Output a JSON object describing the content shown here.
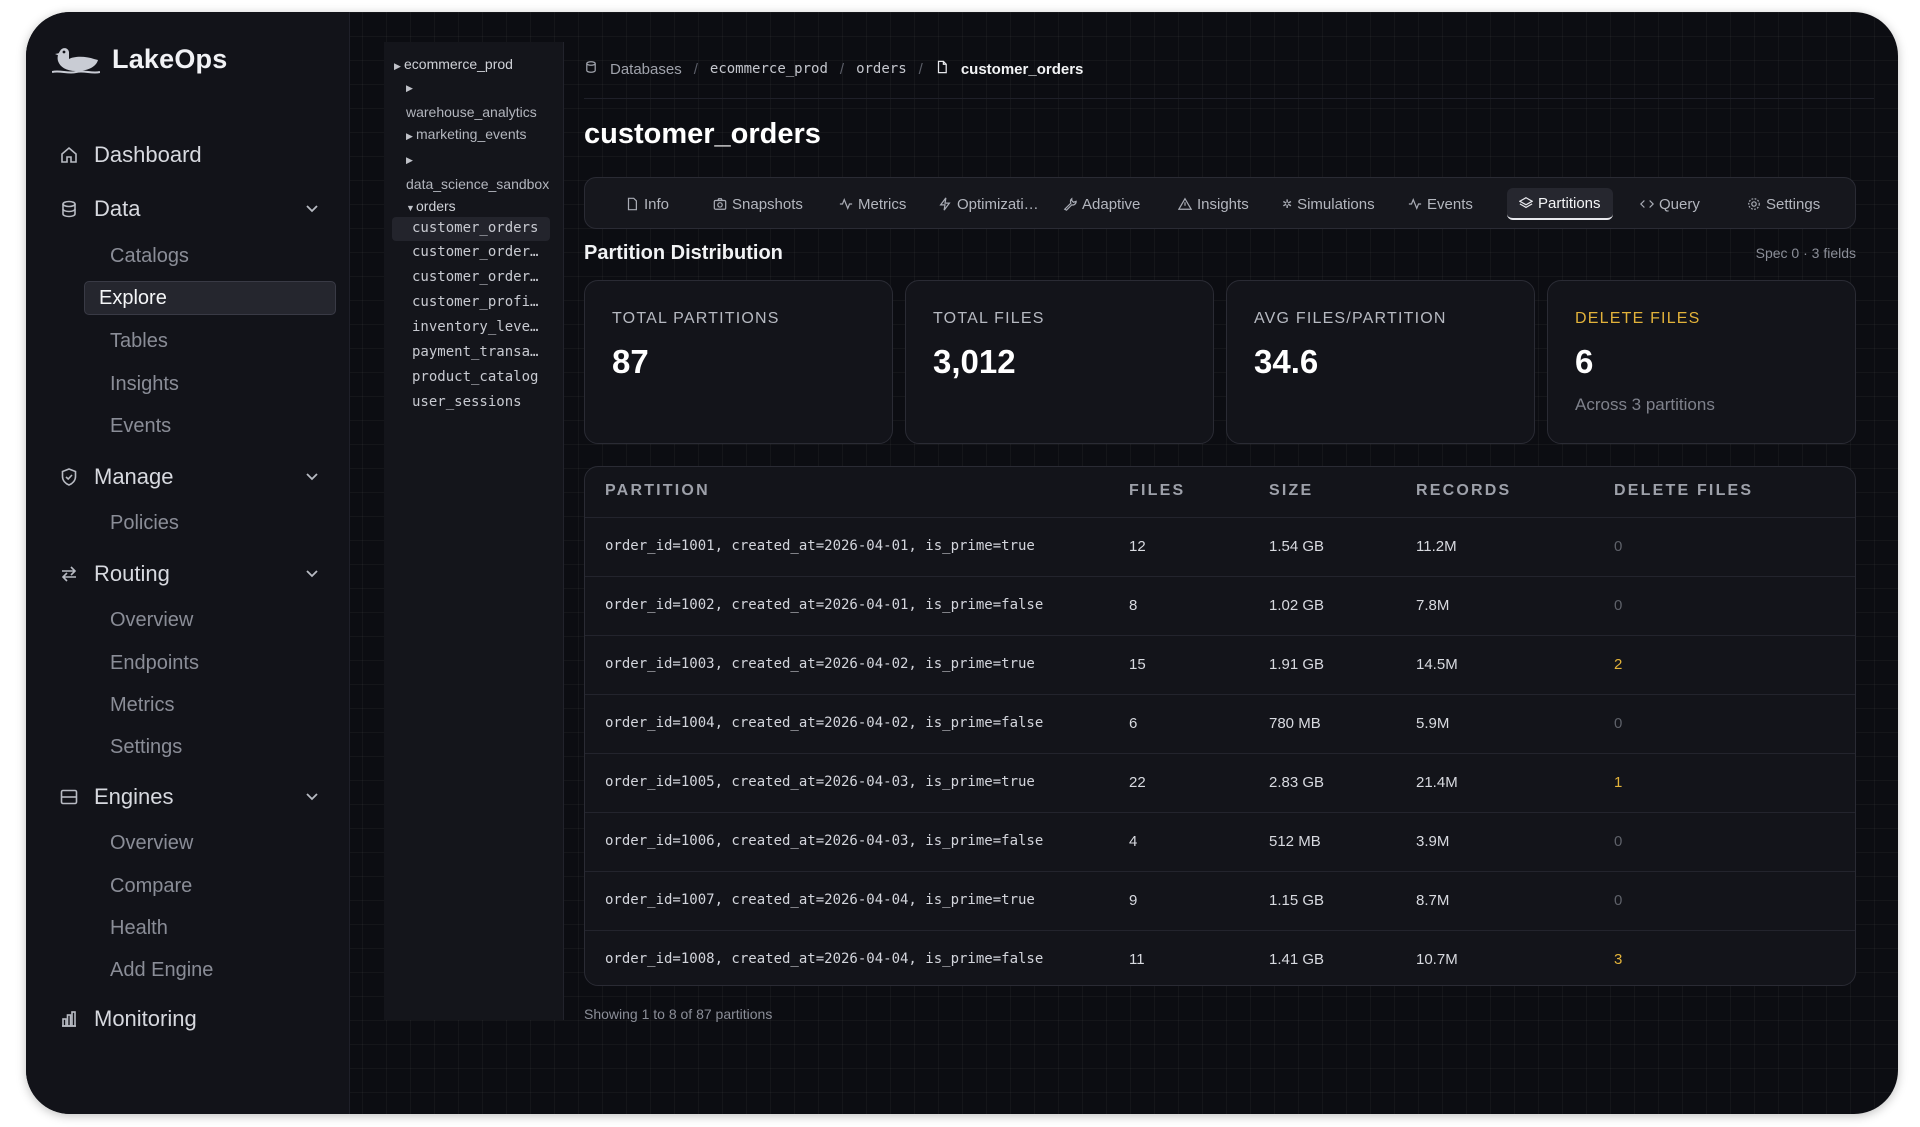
{
  "app": {
    "name": "LakeOps"
  },
  "sidebar": {
    "dashboard": "Dashboard",
    "data": {
      "label": "Data",
      "items": [
        "Catalogs",
        "Explore",
        "Tables",
        "Insights",
        "Events"
      ]
    },
    "manage": {
      "label": "Manage",
      "items": [
        "Policies"
      ]
    },
    "routing": {
      "label": "Routing",
      "items": [
        "Overview",
        "Endpoints",
        "Metrics",
        "Settings"
      ]
    },
    "engines": {
      "label": "Engines",
      "items": [
        "Overview",
        "Compare",
        "Health",
        "Add Engine"
      ]
    },
    "monitoring": "Monitoring"
  },
  "tree": {
    "root": "ecommerce_prod",
    "folders": [
      "warehouse_analytics",
      "marketing_events",
      "data_science_sandbox"
    ],
    "open_folder": "orders",
    "tables": [
      "customer_orders",
      "customer_order…",
      "customer_order…",
      "customer_profi…",
      "inventory_leve…",
      "payment_transa…",
      "product_catalog",
      "user_sessions"
    ]
  },
  "breadcrumb": {
    "root": "Databases",
    "db": "ecommerce_prod",
    "ns": "orders",
    "table": "customer_orders"
  },
  "page": {
    "title": "customer_orders"
  },
  "tabs": [
    "Info",
    "Snapshots",
    "Metrics",
    "Optimizati…",
    "Adaptive",
    "Insights",
    "Simulations",
    "Events",
    "Partitions",
    "Query",
    "Settings"
  ],
  "section": {
    "title": "Partition Distribution",
    "spec": "Spec 0 · 3 fields"
  },
  "cards": [
    {
      "label": "TOTAL PARTITIONS",
      "value": "87",
      "sub": ""
    },
    {
      "label": "TOTAL FILES",
      "value": "3,012",
      "sub": ""
    },
    {
      "label": "AVG FILES/PARTITION",
      "value": "34.6",
      "sub": ""
    },
    {
      "label": "DELETE FILES",
      "value": "6",
      "sub": "Across 3 partitions"
    }
  ],
  "table": {
    "headers": [
      "PARTITION",
      "FILES",
      "SIZE",
      "RECORDS",
      "DELETE FILES"
    ],
    "rows": [
      [
        "order_id=1001, created_at=2026-04-01, is_prime=true",
        "12",
        "1.54 GB",
        "11.2M",
        "0"
      ],
      [
        "order_id=1002, created_at=2026-04-01, is_prime=false",
        "8",
        "1.02 GB",
        "7.8M",
        "0"
      ],
      [
        "order_id=1003, created_at=2026-04-02, is_prime=true",
        "15",
        "1.91 GB",
        "14.5M",
        "2"
      ],
      [
        "order_id=1004, created_at=2026-04-02, is_prime=false",
        "6",
        "780 MB",
        "5.9M",
        "0"
      ],
      [
        "order_id=1005, created_at=2026-04-03, is_prime=true",
        "22",
        "2.83 GB",
        "21.4M",
        "1"
      ],
      [
        "order_id=1006, created_at=2026-04-03, is_prime=false",
        "4",
        "512 MB",
        "3.9M",
        "0"
      ],
      [
        "order_id=1007, created_at=2026-04-04, is_prime=true",
        "9",
        "1.15 GB",
        "8.7M",
        "0"
      ],
      [
        "order_id=1008, created_at=2026-04-04, is_prime=false",
        "11",
        "1.41 GB",
        "10.7M",
        "3"
      ]
    ],
    "footer": "Showing 1 to 8 of 87 partitions"
  },
  "colors": {
    "accent_warn": "#e2b23a",
    "bg": "#0c0d12"
  }
}
